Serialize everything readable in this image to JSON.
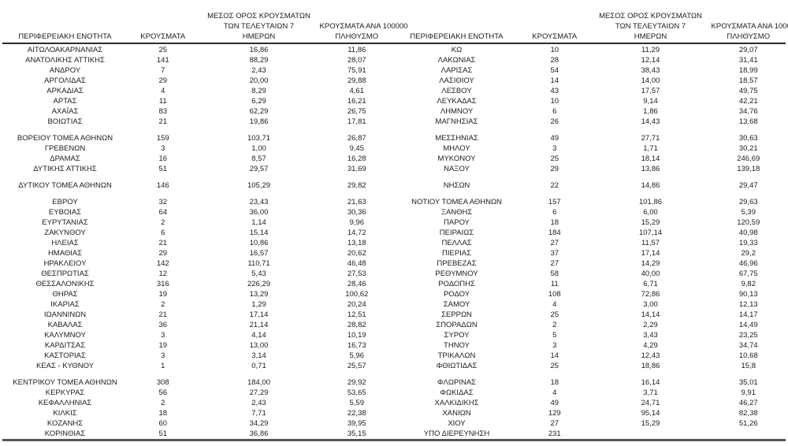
{
  "table": {
    "header": {
      "region": "ΠΕΡΙΦΕΡΕΙΑΚΗ ΕΝΟΤΗΤΑ",
      "cases": "ΚΡΟΥΣΜΑΤΑ",
      "avg_line1": "ΜΕΣΟΣ ΟΡΟΣ ΚΡΟΥΣΜΑΤΩΝ",
      "avg_line2": "ΤΩΝ ΤΕΛΕΥΤΑΙΩΝ 7",
      "avg_line3": "ΗΜΕΡΩΝ",
      "per100k_line1": "ΚΡΟΥΣΜΑΤΑ ΑΝΑ 100000",
      "per100k_line2": "ΠΛΗΘΥΣΜΟ"
    },
    "colors": {
      "text": "#1c1c1c",
      "header_rule": "#2b2b2b",
      "bottom_rule": "#54555a",
      "background": "#ffffff"
    },
    "left_panel": {
      "groups": [
        [
          [
            "ΑΙΤΩΛΟΑΚΑΡΝΑΝΙΑΣ",
            "25",
            "16,86",
            "11,86"
          ],
          [
            "ΑΝΑΤΟΛΙΚΗΣ ΑΤΤΙΚΗΣ",
            "141",
            "88,29",
            "28,07"
          ],
          [
            "ΑΝΔΡΟΥ",
            "7",
            "2,43",
            "75,91"
          ],
          [
            "ΑΡΓΟΛΙΔΑΣ",
            "29",
            "20,00",
            "29,88"
          ],
          [
            "ΑΡΚΑΔΙΑΣ",
            "4",
            "8,29",
            "4,61"
          ],
          [
            "ΑΡΤΑΣ",
            "11",
            "6,29",
            "16,21"
          ],
          [
            "ΑΧΑΪΑΣ",
            "83",
            "62,29",
            "26,75"
          ],
          [
            "ΒΟΙΩΤΙΑΣ",
            "21",
            "19,86",
            "17,81"
          ]
        ],
        [
          [
            "ΒΟΡΕΙΟΥ ΤΟΜΕΑ ΑΘΗΝΩΝ",
            "159",
            "103,71",
            "26,87"
          ],
          [
            "ΓΡΕΒΕΝΩΝ",
            "3",
            "1,00",
            "9,45"
          ],
          [
            "ΔΡΑΜΑΣ",
            "16",
            "8,57",
            "16,28"
          ],
          [
            "ΔΥΤΙΚΗΣ ΑΤΤΙΚΗΣ",
            "51",
            "29,57",
            "31,69"
          ]
        ],
        [
          [
            "ΔΥΤΙΚΟΥ ΤΟΜΕΑ ΑΘΗΝΩΝ",
            "146",
            "105,29",
            "29,82"
          ]
        ],
        [
          [
            "ΕΒΡΟΥ",
            "32",
            "23,43",
            "21,63"
          ],
          [
            "ΕΥΒΟΙΑΣ",
            "64",
            "36,00",
            "30,36"
          ],
          [
            "ΕΥΡΥΤΑΝΙΑΣ",
            "2",
            "1,14",
            "9,96"
          ],
          [
            "ΖΑΚΥΝΘΟΥ",
            "6",
            "15,14",
            "14,72"
          ],
          [
            "ΗΛΕΙΑΣ",
            "21",
            "10,86",
            "13,18"
          ],
          [
            "ΗΜΑΘΙΑΣ",
            "29",
            "16,57",
            "20,62"
          ],
          [
            "ΗΡΑΚΛΕΙΟΥ",
            "142",
            "110,71",
            "46,48"
          ],
          [
            "ΘΕΣΠΡΩΤΙΑΣ",
            "12",
            "5,43",
            "27,53"
          ],
          [
            "ΘΕΣΣΑΛΟΝΙΚΗΣ",
            "316",
            "226,29",
            "28,46"
          ],
          [
            "ΘΗΡΑΣ",
            "19",
            "13,29",
            "100,62"
          ],
          [
            "ΙΚΑΡΙΑΣ",
            "2",
            "1,29",
            "20,24"
          ],
          [
            "ΙΩΑΝΝΙΝΩΝ",
            "21",
            "17,14",
            "12,51"
          ],
          [
            "ΚΑΒΑΛΑΣ",
            "36",
            "21,14",
            "28,82"
          ],
          [
            "ΚΑΛΥΜΝΟΥ",
            "3",
            "4,14",
            "10,19"
          ],
          [
            "ΚΑΡΔΙΤΣΑΣ",
            "19",
            "13,00",
            "16,73"
          ],
          [
            "ΚΑΣΤΟΡΙΑΣ",
            "3",
            "3,14",
            "5,96"
          ],
          [
            "ΚΕΑΣ - ΚΥΘΝΟΥ",
            "1",
            "0,71",
            "25,57"
          ]
        ],
        [
          [
            "ΚΕΝΤΡΙΚΟΥ ΤΟΜΕΑ ΑΘΗΝΩΝ",
            "308",
            "184,00",
            "29,92"
          ],
          [
            "ΚΕΡΚΥΡΑΣ",
            "56",
            "27,29",
            "53,65"
          ],
          [
            "ΚΕΦΑΛΛΗΝΙΑΣ",
            "2",
            "2,43",
            "5,59"
          ],
          [
            "ΚΙΛΚΙΣ",
            "18",
            "7,71",
            "22,38"
          ],
          [
            "ΚΟΖΑΝΗΣ",
            "60",
            "34,29",
            "39,95"
          ],
          [
            "ΚΟΡΙΝΘΙΑΣ",
            "51",
            "36,86",
            "35,15"
          ]
        ]
      ]
    },
    "right_panel": {
      "groups": [
        [
          [
            "ΚΩ",
            "10",
            "11,29",
            "29,07"
          ],
          [
            "ΛΑΚΩΝΙΑΣ",
            "28",
            "12,14",
            "31,41"
          ],
          [
            "ΛΑΡΙΣΑΣ",
            "54",
            "38,43",
            "18,99"
          ],
          [
            "ΛΑΣΙΘΙΟΥ",
            "14",
            "14,00",
            "18,57"
          ],
          [
            "ΛΕΣΒΟΥ",
            "43",
            "17,57",
            "49,75"
          ],
          [
            "ΛΕΥΚΑΔΑΣ",
            "10",
            "9,14",
            "42,21"
          ],
          [
            "ΛΗΜΝΟΥ",
            "6",
            "1,86",
            "34,76"
          ],
          [
            "ΜΑΓΝΗΣΙΑΣ",
            "26",
            "14,43",
            "13,68"
          ]
        ],
        [
          [
            "ΜΕΣΣΗΝΙΑΣ",
            "49",
            "27,71",
            "30,63"
          ],
          [
            "ΜΗΛΟΥ",
            "3",
            "1,71",
            "30,21"
          ],
          [
            "ΜΥΚΟΝΟΥ",
            "25",
            "18,14",
            "246,69"
          ],
          [
            "ΝΑΞΟΥ",
            "29",
            "13,86",
            "139,18"
          ]
        ],
        [
          [
            "ΝΗΣΩΝ",
            "22",
            "14,86",
            "29,47"
          ]
        ],
        [
          [
            "ΝΟΤΙΟΥ ΤΟΜΕΑ ΑΘΗΝΩΝ",
            "157",
            "101,86",
            "29,63"
          ],
          [
            "ΞΑΝΘΗΣ",
            "6",
            "6,00",
            "5,39"
          ],
          [
            "ΠΑΡΟΥ",
            "18",
            "15,29",
            "120,59"
          ],
          [
            "ΠΕΙΡΑΙΩΣ",
            "184",
            "107,14",
            "40,98"
          ],
          [
            "ΠΕΛΛΑΣ",
            "27",
            "11,57",
            "19,33"
          ],
          [
            "ΠΙΕΡΙΑΣ",
            "37",
            "17,14",
            "29,2"
          ],
          [
            "ΠΡΕΒΕΖΑΣ",
            "27",
            "14,29",
            "46,96"
          ],
          [
            "ΡΕΘΥΜΝΟΥ",
            "58",
            "40,00",
            "67,75"
          ],
          [
            "ΡΟΔΟΠΗΣ",
            "11",
            "6,71",
            "9,82"
          ],
          [
            "ΡΟΔΟΥ",
            "108",
            "72,86",
            "90,13"
          ],
          [
            "ΣΑΜΟΥ",
            "4",
            "3,00",
            "12,13"
          ],
          [
            "ΣΕΡΡΩΝ",
            "25",
            "14,14",
            "14,17"
          ],
          [
            "ΣΠΟΡΑΔΩΝ",
            "2",
            "2,29",
            "14,49"
          ],
          [
            "ΣΥΡΟΥ",
            "5",
            "3,43",
            "23,25"
          ],
          [
            "ΤΗΝΟΥ",
            "3",
            "4,29",
            "34,74"
          ],
          [
            "ΤΡΙΚΑΛΩΝ",
            "14",
            "12,43",
            "10,68"
          ],
          [
            "ΦΘΙΩΤΙΔΑΣ",
            "25",
            "18,86",
            "15,8"
          ]
        ],
        [
          [
            "ΦΛΩΡΙΝΑΣ",
            "18",
            "16,14",
            "35,01"
          ],
          [
            "ΦΩΚΙΔΑΣ",
            "4",
            "3,71",
            "9,91"
          ],
          [
            "ΧΑΛΚΙΔΙΚΗΣ",
            "49",
            "24,71",
            "46,27"
          ],
          [
            "ΧΑΝΙΩΝ",
            "129",
            "95,14",
            "82,38"
          ],
          [
            "ΧΙΟΥ",
            "27",
            "15,29",
            "51,26"
          ],
          [
            "ΥΠΟ ΔΙΕΡΕΥΝΗΣΗ",
            "231",
            "",
            ""
          ]
        ]
      ]
    }
  }
}
